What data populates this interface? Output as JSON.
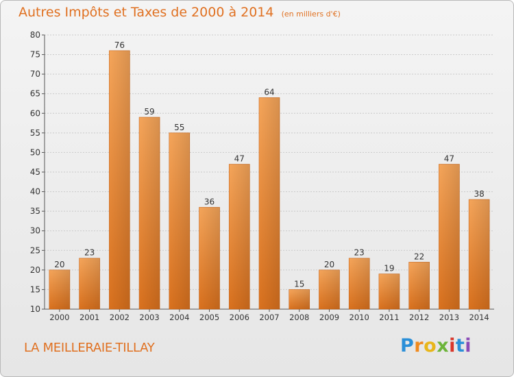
{
  "chart_data": {
    "type": "bar",
    "title": "Autres Impôts et Taxes de 2000 à 2014",
    "subtitle": "(en milliers d'€)",
    "categories": [
      "2000",
      "2001",
      "2002",
      "2003",
      "2004",
      "2005",
      "2006",
      "2007",
      "2008",
      "2009",
      "2010",
      "2011",
      "2012",
      "2013",
      "2014"
    ],
    "values": [
      20,
      23,
      76,
      59,
      55,
      36,
      47,
      64,
      15,
      20,
      23,
      19,
      22,
      47,
      38
    ],
    "ylim": [
      10,
      80
    ],
    "yticks": [
      10,
      15,
      20,
      25,
      30,
      35,
      40,
      45,
      50,
      55,
      60,
      65,
      70,
      75,
      80
    ],
    "grid": true,
    "bar_color": "#f29a45"
  },
  "footer": {
    "town": "LA MEILLERAIE-TILLAY",
    "logo_letters": [
      "P",
      "r",
      "o",
      "x",
      "i",
      "t",
      "i"
    ]
  }
}
